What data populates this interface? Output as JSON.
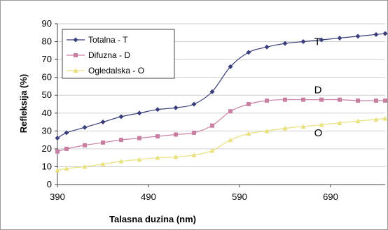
{
  "chart_data": {
    "type": "line",
    "title": "",
    "xlabel": "Talasna duzina (nm)",
    "ylabel": "Refleksija (%)",
    "xlim": [
      390,
      750
    ],
    "ylim": [
      0,
      90
    ],
    "xticks": [
      390,
      490,
      590,
      690
    ],
    "yticks": [
      0,
      10,
      20,
      30,
      40,
      50,
      60,
      70,
      80,
      90
    ],
    "grid": "horizontal",
    "legend_position": "top-left",
    "series": [
      {
        "name": "Totalna - T",
        "color": "#3a3f7c",
        "marker": "diamond",
        "x": [
          390,
          400,
          420,
          440,
          460,
          480,
          500,
          520,
          540,
          560,
          580,
          600,
          620,
          640,
          660,
          680,
          700,
          720,
          740,
          750
        ],
        "y": [
          26,
          29,
          32,
          35,
          38,
          40,
          42,
          43,
          45,
          52,
          66,
          74,
          77,
          79,
          80,
          81,
          82,
          83,
          84,
          84.5
        ]
      },
      {
        "name": "Difuzna - D",
        "color": "#c97fa2",
        "marker": "square",
        "x": [
          390,
          400,
          420,
          440,
          460,
          480,
          500,
          520,
          540,
          560,
          580,
          600,
          620,
          640,
          660,
          680,
          700,
          720,
          740,
          750
        ],
        "y": [
          18.5,
          20,
          22,
          23.5,
          25,
          26,
          27,
          28,
          29,
          33,
          41,
          45,
          47,
          47.5,
          47.5,
          47.5,
          47.5,
          47,
          47,
          47
        ]
      },
      {
        "name": "Ogledalska - O",
        "color": "#e8e07a",
        "marker": "triangle",
        "x": [
          390,
          400,
          420,
          440,
          460,
          480,
          500,
          520,
          540,
          560,
          580,
          600,
          620,
          640,
          660,
          680,
          700,
          720,
          740,
          750
        ],
        "y": [
          8,
          9,
          10,
          11.5,
          13,
          14,
          15,
          15.5,
          16.5,
          19,
          25,
          28.5,
          30,
          31.5,
          32.5,
          33.5,
          34.5,
          35.5,
          36.5,
          37
        ]
      }
    ],
    "annotations": [
      {
        "text": "T",
        "x": 672,
        "y": 78
      },
      {
        "text": "D",
        "x": 672,
        "y": 51
      },
      {
        "text": "O",
        "x": 672,
        "y": 27
      }
    ]
  }
}
